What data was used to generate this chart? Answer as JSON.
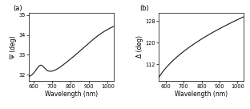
{
  "panel_a": {
    "label": "(a)",
    "xlabel": "Wavelength (nm)",
    "ylabel": "Ψ (deg)",
    "xlim": [
      575,
      1035
    ],
    "ylim": [
      31.7,
      35.1
    ],
    "yticks": [
      32,
      33,
      34,
      35
    ],
    "xticks": [
      600,
      700,
      800,
      900,
      1000
    ],
    "xtick_labels": [
      "600",
      "700",
      "800",
      "900",
      "1000"
    ],
    "curve_color": "#222222"
  },
  "panel_b": {
    "label": "(b)",
    "xlabel": "Wavelength (nm)",
    "ylabel": "Δ (deg)",
    "xlim": [
      560,
      1035
    ],
    "ylim": [
      106,
      131
    ],
    "yticks": [
      112,
      120,
      128
    ],
    "xticks": [
      600,
      700,
      800,
      900,
      1000
    ],
    "xtick_labels": [
      "600",
      "700",
      "800",
      "900",
      "1000"
    ],
    "curve_color": "#222222"
  },
  "background_color": "#ffffff",
  "line_width": 0.85
}
